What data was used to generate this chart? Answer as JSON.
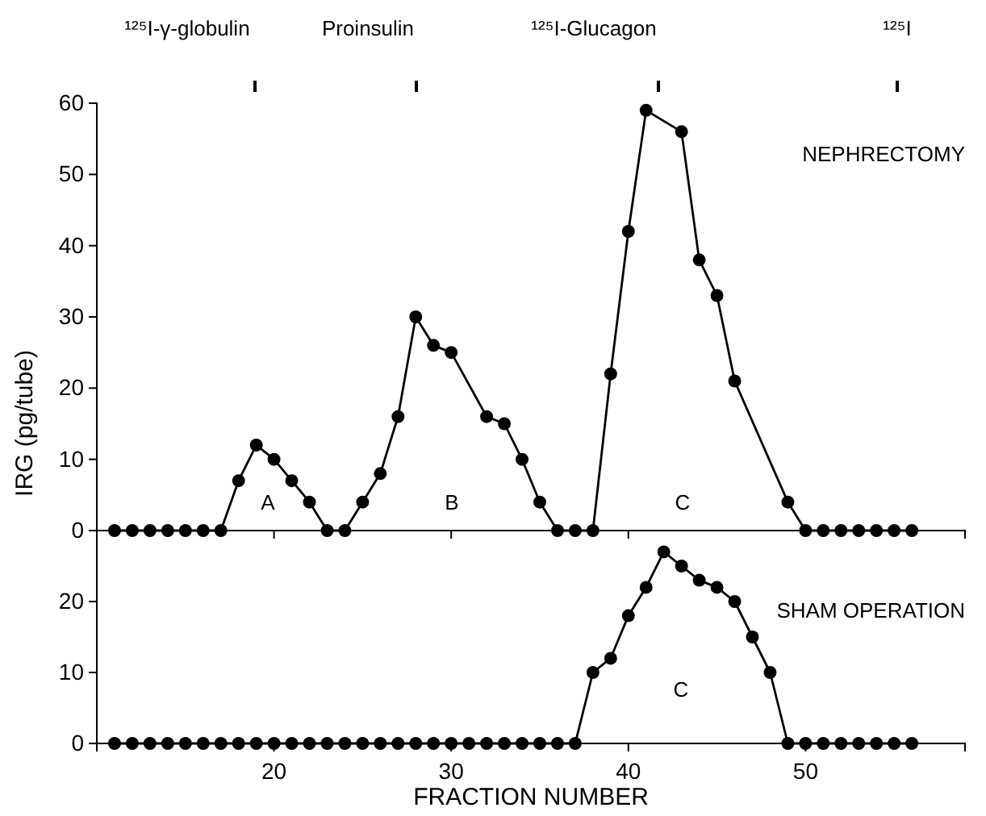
{
  "chart_data": [
    {
      "type": "line",
      "ylabel": "IRG (pg/tube)",
      "xlim": [
        10,
        59
      ],
      "xticks": [
        {
          "value": 20,
          "label": null
        },
        {
          "value": 30,
          "label": null
        },
        {
          "value": 40,
          "label": null
        }
      ],
      "ylim": [
        0,
        60
      ],
      "yticks": [
        0,
        10,
        20,
        30,
        40,
        50,
        60
      ],
      "tick_labels": "y",
      "marker": "circle",
      "line_style": "solid",
      "series": [
        {
          "color": "#000000",
          "x": [
            11,
            12,
            13,
            14,
            15,
            16,
            17,
            18,
            19,
            20,
            21,
            22,
            23,
            24,
            25,
            26,
            27,
            28,
            29,
            30,
            32,
            33,
            34,
            35,
            36,
            37,
            38,
            39,
            40,
            41,
            43,
            44,
            45,
            46,
            49,
            50,
            51,
            52,
            53,
            54,
            55,
            56
          ],
          "values": [
            0,
            0,
            0,
            0,
            0,
            0,
            0,
            7,
            12,
            10,
            7,
            4,
            0,
            0,
            4,
            8,
            16,
            30,
            26,
            25,
            16,
            15,
            10,
            4,
            0,
            0,
            0,
            22,
            42,
            59,
            56,
            38,
            33,
            21,
            4,
            0,
            0,
            0,
            0,
            0,
            0,
            0
          ]
        }
      ],
      "annotations": [
        "¹²⁵I-γ-globulin",
        "Proinsulin",
        "¹²⁵I-Glucagon",
        "¹²⁵I",
        "NEPHRECTOMY",
        "A",
        "B",
        "C"
      ]
    },
    {
      "type": "line",
      "xlabel": "FRACTION NUMBER",
      "xlim": [
        10,
        59
      ],
      "xticks": [
        20,
        30,
        40,
        50
      ],
      "ylim": [
        0,
        30
      ],
      "yticks": [
        0,
        10,
        20
      ],
      "marker": "circle",
      "line_style": "solid",
      "series": [
        {
          "color": "#000000",
          "x": [
            11,
            12,
            13,
            14,
            15,
            16,
            17,
            18,
            19,
            20,
            21,
            22,
            23,
            24,
            25,
            26,
            27,
            28,
            29,
            30,
            31,
            32,
            33,
            34,
            35,
            36,
            37,
            38,
            39,
            40,
            41,
            42,
            43,
            44,
            45,
            46,
            47,
            48,
            49,
            50,
            51,
            52,
            53,
            54,
            55,
            56
          ],
          "values": [
            0,
            0,
            0,
            0,
            0,
            0,
            0,
            0,
            0,
            0,
            0,
            0,
            0,
            0,
            0,
            0,
            0,
            0,
            0,
            0,
            0,
            0,
            0,
            0,
            0,
            0,
            0,
            10,
            12,
            18,
            22,
            27,
            25,
            23,
            22,
            20,
            15,
            10,
            0,
            0,
            0,
            0,
            0,
            0,
            0,
            0
          ]
        }
      ],
      "annotations": [
        "SHAM OPERATION",
        "C"
      ]
    }
  ]
}
